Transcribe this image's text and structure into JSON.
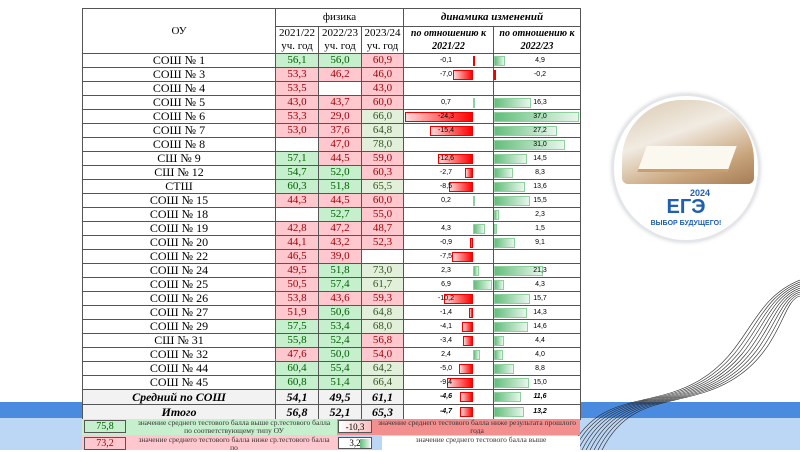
{
  "header": {
    "ou": "ОУ",
    "subject": "физика",
    "dynamics": "динамика изменений",
    "years": [
      {
        "year": "2021/22",
        "unit": "уч. год"
      },
      {
        "year": "2022/23",
        "unit": "уч. год"
      },
      {
        "year": "2023/24",
        "unit": "уч. год"
      }
    ],
    "vs1": {
      "line1": "по отношению к",
      "line2": "2021/22"
    },
    "vs2": {
      "line1": "по отношению к",
      "line2": "2022/23"
    }
  },
  "colors": {
    "above": "#c6efce",
    "below": "#ffc7ce",
    "pale": "#e2efda",
    "neg_bar": "#ff0000",
    "pos_bar": "#63be7b",
    "band_dark": "#4a8be0",
    "band_light": "#bcd6f5"
  },
  "rows": [
    {
      "name": "СОШ № 1",
      "cells": [
        [
          "56,1",
          "above"
        ],
        [
          "56,0",
          "above"
        ],
        [
          "60,9",
          "below"
        ]
      ],
      "d1": "-0,1",
      "d2": "4,9"
    },
    {
      "name": "СОШ № 3",
      "cells": [
        [
          "53,3",
          "below"
        ],
        [
          "46,2",
          "below"
        ],
        [
          "46,0",
          "below"
        ]
      ],
      "d1": "-7,0",
      "d2": "-0,2"
    },
    {
      "name": "СОШ № 4",
      "cells": [
        [
          "53,5",
          "below"
        ],
        [
          "",
          ""
        ],
        [
          "43,0",
          "below"
        ]
      ],
      "d1": "",
      "d2": ""
    },
    {
      "name": "СОШ № 5",
      "cells": [
        [
          "43,0",
          "below"
        ],
        [
          "43,7",
          "below"
        ],
        [
          "60,0",
          "below"
        ]
      ],
      "d1": "0,7",
      "d2": "16,3"
    },
    {
      "name": "СОШ № 6",
      "cells": [
        [
          "53,3",
          "below"
        ],
        [
          "29,0",
          "below"
        ],
        [
          "66,0",
          "pale"
        ]
      ],
      "d1": "-24,3",
      "d2": "37,0"
    },
    {
      "name": "СОШ № 7",
      "cells": [
        [
          "53,0",
          "below"
        ],
        [
          "37,6",
          "below"
        ],
        [
          "64,8",
          "pale"
        ]
      ],
      "d1": "-15,4",
      "d2": "27,2"
    },
    {
      "name": "СОШ № 8",
      "cells": [
        [
          "",
          ""
        ],
        [
          "47,0",
          "below"
        ],
        [
          "78,0",
          "pale"
        ]
      ],
      "d1": "",
      "d2": "31,0"
    },
    {
      "name": "СШ № 9",
      "cells": [
        [
          "57,1",
          "above"
        ],
        [
          "44,5",
          "below"
        ],
        [
          "59,0",
          "below"
        ]
      ],
      "d1": "-12,6",
      "d2": "14,5"
    },
    {
      "name": "СШ № 12",
      "cells": [
        [
          "54,7",
          "above"
        ],
        [
          "52,0",
          "above"
        ],
        [
          "60,3",
          "below"
        ]
      ],
      "d1": "-2,7",
      "d2": "8,3"
    },
    {
      "name": "СТШ",
      "cells": [
        [
          "60,3",
          "above"
        ],
        [
          "51,8",
          "above"
        ],
        [
          "65,5",
          "pale"
        ]
      ],
      "d1": "-8,5",
      "d2": "13,6"
    },
    {
      "name": "СОШ № 15",
      "cells": [
        [
          "44,3",
          "below"
        ],
        [
          "44,5",
          "below"
        ],
        [
          "60,0",
          "below"
        ]
      ],
      "d1": "0,2",
      "d2": "15,5"
    },
    {
      "name": "СОШ № 18",
      "cells": [
        [
          "",
          ""
        ],
        [
          "52,7",
          "above"
        ],
        [
          "55,0",
          "below"
        ]
      ],
      "d1": "",
      "d2": "2,3"
    },
    {
      "name": "СОШ № 19",
      "cells": [
        [
          "42,8",
          "below"
        ],
        [
          "47,2",
          "below"
        ],
        [
          "48,7",
          "below"
        ]
      ],
      "d1": "4,3",
      "d2": "1,5"
    },
    {
      "name": "СОШ № 20",
      "cells": [
        [
          "44,1",
          "below"
        ],
        [
          "43,2",
          "below"
        ],
        [
          "52,3",
          "below"
        ]
      ],
      "d1": "-0,9",
      "d2": "9,1"
    },
    {
      "name": "СОШ № 22",
      "cells": [
        [
          "46,5",
          "below"
        ],
        [
          "39,0",
          "below"
        ],
        [
          "",
          ""
        ]
      ],
      "d1": "-7,5",
      "d2": ""
    },
    {
      "name": "СОШ № 24",
      "cells": [
        [
          "49,5",
          "below"
        ],
        [
          "51,8",
          "above"
        ],
        [
          "73,0",
          "pale"
        ]
      ],
      "d1": "2,3",
      "d2": "21,3"
    },
    {
      "name": "СОШ № 25",
      "cells": [
        [
          "50,5",
          "below"
        ],
        [
          "57,4",
          "above"
        ],
        [
          "61,7",
          "pale"
        ]
      ],
      "d1": "6,9",
      "d2": "4,3"
    },
    {
      "name": "СОШ № 26",
      "cells": [
        [
          "53,8",
          "below"
        ],
        [
          "43,6",
          "below"
        ],
        [
          "59,3",
          "below"
        ]
      ],
      "d1": "-10,2",
      "d2": "15,7"
    },
    {
      "name": "СОШ № 27",
      "cells": [
        [
          "51,9",
          "below"
        ],
        [
          "50,6",
          "above"
        ],
        [
          "64,8",
          "pale"
        ]
      ],
      "d1": "-1,4",
      "d2": "14,3"
    },
    {
      "name": "СОШ № 29",
      "cells": [
        [
          "57,5",
          "above"
        ],
        [
          "53,4",
          "above"
        ],
        [
          "68,0",
          "pale"
        ]
      ],
      "d1": "-4,1",
      "d2": "14,6"
    },
    {
      "name": "СШ № 31",
      "cells": [
        [
          "55,8",
          "above"
        ],
        [
          "52,4",
          "above"
        ],
        [
          "56,8",
          "below"
        ]
      ],
      "d1": "-3,4",
      "d2": "4,4"
    },
    {
      "name": "СОШ № 32",
      "cells": [
        [
          "47,6",
          "below"
        ],
        [
          "50,0",
          "above"
        ],
        [
          "54,0",
          "below"
        ]
      ],
      "d1": "2,4",
      "d2": "4,0"
    },
    {
      "name": "СОШ № 44",
      "cells": [
        [
          "60,4",
          "above"
        ],
        [
          "55,4",
          "above"
        ],
        [
          "64,2",
          "pale"
        ]
      ],
      "d1": "-5,0",
      "d2": "8,8"
    },
    {
      "name": "СОШ № 45",
      "cells": [
        [
          "60,8",
          "above"
        ],
        [
          "51,4",
          "above"
        ],
        [
          "66,4",
          "pale"
        ]
      ],
      "d1": "-9,4",
      "d2": "15,0"
    }
  ],
  "totals": [
    {
      "name": "Средний по СОШ",
      "cells": [
        [
          "54,1",
          ""
        ],
        [
          "49,5",
          ""
        ],
        [
          "61,1",
          ""
        ]
      ],
      "d1": "-4,6",
      "d2": "11,6"
    },
    {
      "name": "Итого",
      "cells": [
        [
          "56,8",
          ""
        ],
        [
          "52,1",
          ""
        ],
        [
          "65,3",
          ""
        ]
      ],
      "d1": "-4,7",
      "d2": "13,2"
    }
  ],
  "legend": {
    "above_sample": "75,8",
    "above_text": "значение среднего тестового балла выше ср.тестового балла по соответствующему типу ОУ",
    "neg_sample": "-10,3",
    "neg_text": "значение среднего тестового балла ниже результата прошлого года",
    "below_sample": "73,2",
    "below_text": "значение среднего тестового балла ниже ср.тестового балла по",
    "pos_sample": "3,2",
    "pos_text": "значение среднего тестового балла выше"
  },
  "logo": {
    "year": "2024",
    "word": "ЕГЭ",
    "slogan": "ВЫБОР БУДУЩЕГО!"
  }
}
